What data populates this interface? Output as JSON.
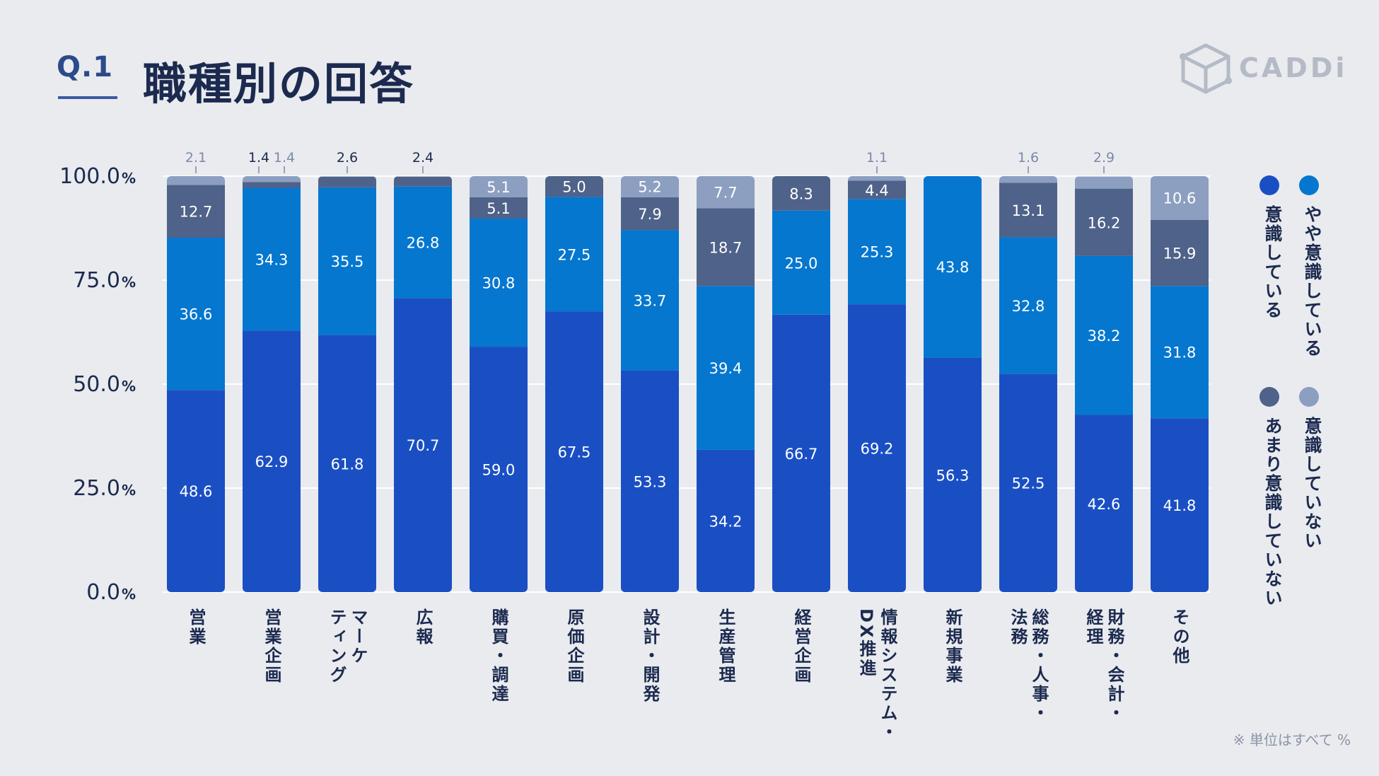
{
  "header": {
    "question": "Q.1",
    "title": "職種別の回答",
    "logo_text": "CADDi"
  },
  "note": "※ 単位はすべて %",
  "colors": {
    "background": "#e9ebef",
    "s1": "#1a4fc4",
    "s2": "#0577cf",
    "s3": "#4f6289",
    "s4": "#8c9fc1",
    "grid": "#ffffff",
    "text_dark": "#1c2a4f",
    "text_light": "#ffffff",
    "outside_label": "#7b8aa8"
  },
  "legend": [
    {
      "label": "やや意識している",
      "color_key": "s2"
    },
    {
      "label": "意識している",
      "color_key": "s1"
    },
    {
      "label": "意識していない",
      "color_key": "s4"
    },
    {
      "label": "あまり意識していない",
      "color_key": "s3"
    }
  ],
  "chart_data": {
    "type": "bar",
    "stacked": true,
    "title": "職種別の回答",
    "xlabel": "",
    "ylabel": "",
    "ylim": [
      0,
      100
    ],
    "ytick_unit": "%",
    "yticks": [
      "0.0",
      "25.0",
      "50.0",
      "75.0",
      "100.0"
    ],
    "grid": true,
    "legend_position": "right",
    "categories": [
      "営業",
      "営業企画",
      "マーケティング",
      "広報",
      "購買・調達",
      "原価企画",
      "設計・開発",
      "生産管理",
      "経営企画",
      "情報システム・DX推進",
      "新規事業",
      "総務・人事・法務",
      "財務・会計・経理",
      "その他"
    ],
    "category_lines": [
      [
        "営業"
      ],
      [
        "営業企画"
      ],
      [
        "マーケ",
        "ティング"
      ],
      [
        "広報"
      ],
      [
        "購買・調達"
      ],
      [
        "原価企画"
      ],
      [
        "設計・開発"
      ],
      [
        "生産管理"
      ],
      [
        "経営企画"
      ],
      [
        "情報システム・",
        "DX推進"
      ],
      [
        "新規事業"
      ],
      [
        "総務・人事・",
        "法務"
      ],
      [
        "財務・会計・",
        "経理"
      ],
      [
        "その他"
      ]
    ],
    "series": [
      {
        "name": "意識している",
        "color_key": "s1",
        "values": [
          48.6,
          62.9,
          61.8,
          70.7,
          59.0,
          67.5,
          53.3,
          34.2,
          66.7,
          69.2,
          56.3,
          52.5,
          42.6,
          41.8
        ]
      },
      {
        "name": "やや意識している",
        "color_key": "s2",
        "values": [
          36.6,
          34.3,
          35.5,
          26.8,
          30.8,
          27.5,
          33.7,
          39.4,
          25.0,
          25.3,
          43.8,
          32.8,
          38.2,
          31.8
        ]
      },
      {
        "name": "あまり意識していない",
        "color_key": "s3",
        "values": [
          12.7,
          1.4,
          2.6,
          2.4,
          5.1,
          5.0,
          7.9,
          18.7,
          8.3,
          4.4,
          0,
          13.1,
          16.2,
          15.9
        ]
      },
      {
        "name": "意識していない",
        "color_key": "s4",
        "values": [
          2.1,
          1.4,
          0,
          0,
          5.1,
          0,
          5.2,
          7.7,
          0,
          1.1,
          0,
          1.6,
          2.9,
          10.6
        ]
      }
    ],
    "labels": [
      [
        "48.6",
        "36.6",
        "12.7",
        "2.1"
      ],
      [
        "62.9",
        "34.3",
        "1.4",
        "1.4"
      ],
      [
        "61.8",
        "35.5",
        "2.6",
        ""
      ],
      [
        "70.7",
        "26.8",
        "2.4",
        ""
      ],
      [
        "59.0",
        "30.8",
        "5.1",
        "5.1"
      ],
      [
        "67.5",
        "27.5",
        "5.0",
        ""
      ],
      [
        "53.3",
        "33.7",
        "7.9",
        "5.2"
      ],
      [
        "34.2",
        "39.4",
        "18.7",
        "7.7"
      ],
      [
        "66.7",
        "25.0",
        "8.3",
        ""
      ],
      [
        "69.2",
        "25.3",
        "4.4",
        "1.1"
      ],
      [
        "56.3",
        "43.8",
        "",
        ""
      ],
      [
        "52.5",
        "32.8",
        "13.1",
        "1.6"
      ],
      [
        "42.6",
        "38.2",
        "16.2",
        "2.9"
      ],
      [
        "41.8",
        "31.8",
        "15.9",
        "10.6"
      ]
    ]
  }
}
